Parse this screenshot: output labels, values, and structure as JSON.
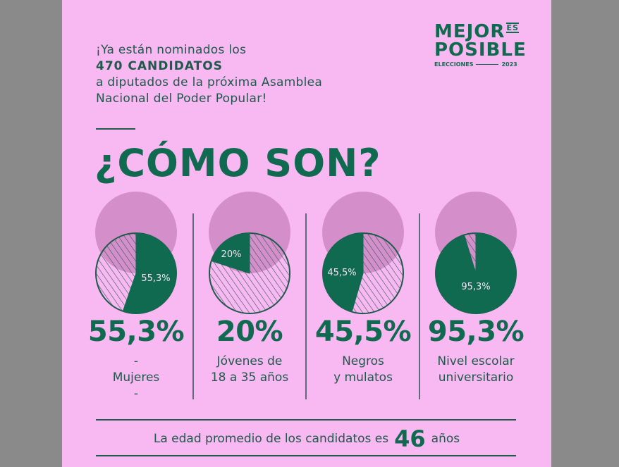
{
  "intro": {
    "line1": "¡Ya están nominados los",
    "line2": "470 CANDIDATOS",
    "line3": "a diputados de la próxima Asamblea",
    "line4": "Nacional del Poder Popular!"
  },
  "title": "¿CÓMO SON?",
  "logo": {
    "mejor": "MEJOR",
    "es": "ES",
    "posible": "POSIBLE",
    "elecciones": "ELECCIONES",
    "year": "2023"
  },
  "colors": {
    "pink": "#f8b8f1",
    "green": "#0f6a4f"
  },
  "chart_data": {
    "type": "pie",
    "items": [
      {
        "value": 55.3,
        "label_in": "55,3%",
        "big": "55,3%",
        "desc1": "-",
        "desc2": "Mujeres",
        "desc3": "-"
      },
      {
        "value": 20,
        "label_in": "20%",
        "big": "20%",
        "desc1": "Jóvenes de",
        "desc2": "18 a 35 años",
        "desc3": ""
      },
      {
        "value": 45.5,
        "label_in": "45,5%",
        "big": "45,5%",
        "desc1": "Negros",
        "desc2": "y mulatos",
        "desc3": ""
      },
      {
        "value": 95.3,
        "label_in": "95,3%",
        "big": "95,3%",
        "desc1": "Nivel escolar",
        "desc2": "universitario",
        "desc3": ""
      }
    ]
  },
  "footer": {
    "pre": "La edad promedio de los candidatos es",
    "age": "46",
    "post": "años"
  }
}
